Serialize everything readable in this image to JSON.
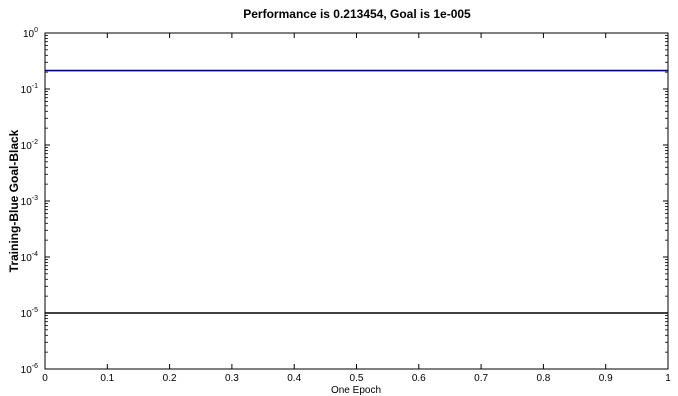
{
  "chart_data": {
    "type": "line",
    "title": "Performance is 0.213454, Goal is 1e-005",
    "xlabel": "One Epoch",
    "ylabel": "Training-Blue  Goal-Black",
    "xlim": [
      0,
      1
    ],
    "ylim": [
      1e-06,
      1
    ],
    "yscale": "log",
    "grid": false,
    "x_ticks": [
      {
        "value": 0,
        "label": "0"
      },
      {
        "value": 0.1,
        "label": "0.1"
      },
      {
        "value": 0.2,
        "label": "0.2"
      },
      {
        "value": 0.3,
        "label": "0.3"
      },
      {
        "value": 0.4,
        "label": "0.4"
      },
      {
        "value": 0.5,
        "label": "0.5"
      },
      {
        "value": 0.6,
        "label": "0.6"
      },
      {
        "value": 0.7,
        "label": "0.7"
      },
      {
        "value": 0.8,
        "label": "0.8"
      },
      {
        "value": 0.9,
        "label": "0.9"
      },
      {
        "value": 1,
        "label": "1"
      }
    ],
    "y_ticks": [
      {
        "value": 1,
        "base": "10",
        "exp": "0"
      },
      {
        "value": 0.1,
        "base": "10",
        "exp": "-1"
      },
      {
        "value": 0.01,
        "base": "10",
        "exp": "-2"
      },
      {
        "value": 0.001,
        "base": "10",
        "exp": "-3"
      },
      {
        "value": 0.0001,
        "base": "10",
        "exp": "-4"
      },
      {
        "value": 1e-05,
        "base": "10",
        "exp": "-5"
      },
      {
        "value": 1e-06,
        "base": "10",
        "exp": "-6"
      }
    ],
    "series": [
      {
        "key": "training",
        "color": "#00007f",
        "x": [
          0,
          1
        ],
        "y": [
          0.213454,
          0.213454
        ]
      },
      {
        "key": "goal",
        "color": "#000000",
        "x": [
          0,
          1
        ],
        "y": [
          1e-05,
          1e-05
        ]
      }
    ]
  }
}
